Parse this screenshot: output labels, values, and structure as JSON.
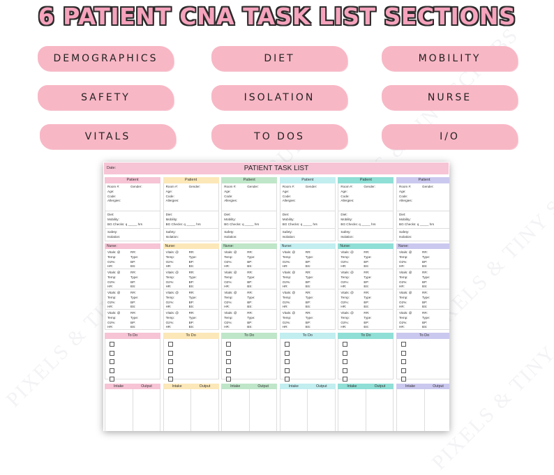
{
  "title": "6 PATIENT CNA TASK LIST SECTIONS",
  "sections": [
    "DEMOGRAPHICS",
    "DIET",
    "MOBILITY",
    "SAFETY",
    "ISOLATION",
    "NURSE",
    "VITALS",
    "TO DOS",
    "I/O"
  ],
  "watermark": "PIXELS & TINY SCRUBS",
  "sheet": {
    "title": "PATIENT TASK LIST",
    "date_label": "Date:",
    "patient_label": "Patient",
    "room_label": "Room #:",
    "gender_label": "Gender:",
    "age_label": "Age:",
    "code_label": "Code:",
    "allergies_label": "Allergies:",
    "diet_label": "Diet:",
    "mobility_label": "Mobility:",
    "bg_checks_label": "BG Checks: q _____ hrs",
    "safety_label": "Safety:",
    "isolation_label": "Isolation:",
    "nurse_label": "Nurse:",
    "vitals": {
      "vitals": "Vitals: @",
      "temp": "Temp:",
      "o2": "O2%:",
      "hr": "HR:",
      "rr": "RR:",
      "type": "Type:",
      "bp": "BP:",
      "bs": "BS:"
    },
    "todo_label": "To Do",
    "intake_label": "Intake",
    "output_label": "Output",
    "columns": [
      {
        "color": "#f6c4d5"
      },
      {
        "color": "#fbe7b8"
      },
      {
        "color": "#bfe6c9"
      },
      {
        "color": "#c2eef0"
      },
      {
        "color": "#8fdfd6"
      },
      {
        "color": "#cbc8ef"
      }
    ]
  }
}
